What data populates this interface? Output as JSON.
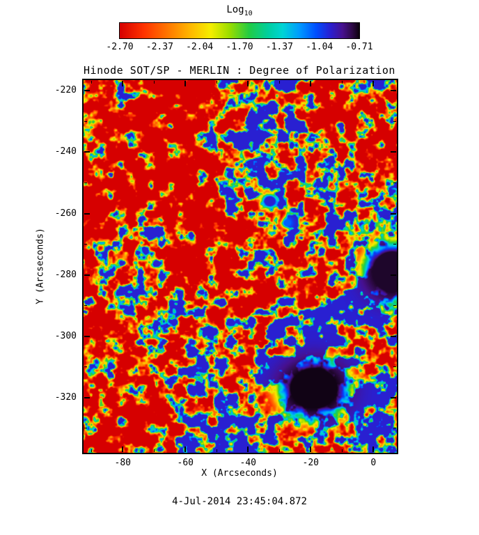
{
  "figure": {
    "timestamp": "4-Jul-2014 23:45:04.872",
    "background": "#ffffff"
  },
  "colorbar": {
    "scale_label": "Log",
    "scale_sub": "10",
    "tick_labels": [
      "-2.70",
      "-2.37",
      "-2.04",
      "-1.70",
      "-1.37",
      "-1.04",
      "-0.71"
    ]
  },
  "chart_data": {
    "type": "heatmap",
    "title": "Hinode SOT/SP - MERLIN : Degree of Polarization",
    "xlabel": "X (Arcseconds)",
    "ylabel": "Y (Arcseconds)",
    "xlim": [
      -92.5,
      7.5
    ],
    "ylim": [
      -338,
      -216.5
    ],
    "grid": false,
    "legend_position": "top-colorbar",
    "xticks": [
      {
        "v": -80,
        "label": "-80"
      },
      {
        "v": -60,
        "label": "-60"
      },
      {
        "v": -40,
        "label": "-40"
      },
      {
        "v": -20,
        "label": "-20"
      },
      {
        "v": 0,
        "label": "0"
      }
    ],
    "xminor": [
      -90,
      -70,
      -50,
      -30,
      -10
    ],
    "yticks": [
      {
        "v": -220,
        "label": "-220"
      },
      {
        "v": -240,
        "label": "-240"
      },
      {
        "v": -260,
        "label": "-260"
      },
      {
        "v": -280,
        "label": "-280"
      },
      {
        "v": -300,
        "label": "-300"
      },
      {
        "v": -320,
        "label": "-320"
      }
    ],
    "yminor": [
      -230,
      -250,
      -270,
      -290,
      -310,
      -330
    ],
    "colorbar": {
      "scale": "Log10",
      "vmin": -2.7,
      "vmax": -0.71,
      "tick_values": [
        -2.7,
        -2.37,
        -2.04,
        -1.7,
        -1.37,
        -1.04,
        -0.71
      ]
    },
    "colormap": [
      {
        "t": 0.0,
        "c": "#d60000"
      },
      {
        "t": 0.1,
        "c": "#ff3300"
      },
      {
        "t": 0.2,
        "c": "#ff7700"
      },
      {
        "t": 0.3,
        "c": "#ffbb00"
      },
      {
        "t": 0.38,
        "c": "#f5ee00"
      },
      {
        "t": 0.46,
        "c": "#99dd00"
      },
      {
        "t": 0.54,
        "c": "#22cc44"
      },
      {
        "t": 0.62,
        "c": "#00cfa0"
      },
      {
        "t": 0.68,
        "c": "#00d5d5"
      },
      {
        "t": 0.75,
        "c": "#009bff"
      },
      {
        "t": 0.82,
        "c": "#004fff"
      },
      {
        "t": 0.88,
        "c": "#2a1fd0"
      },
      {
        "t": 0.93,
        "c": "#47118f"
      },
      {
        "t": 0.97,
        "c": "#2e0a47"
      },
      {
        "t": 1.0,
        "c": "#0d020d"
      }
    ],
    "field": {
      "description": "Log10 degree-of-polarization field: quiet-sun granulation mostly red (~-2.7) with green/cyan/blue network lanes, two dark sunspots (high polarization ~-0.7) and small pores",
      "seed": 20140704,
      "vmin": -2.95,
      "vmax": -0.95,
      "gamma": 2.2,
      "stretch": 3.4,
      "octaves": [
        {
          "scale": 14,
          "weight": 0.55
        },
        {
          "scale": 3.2,
          "weight": 1.0
        },
        {
          "scale": 1.6,
          "weight": 0.55
        },
        {
          "scale": 0.8,
          "weight": 0.3
        }
      ],
      "regional_bias": {
        "x0": -92,
        "x1": 8,
        "y0": -217,
        "y1": -338,
        "cols": 10,
        "rows": 12,
        "values": [
          [
            -0.1,
            0.0,
            -0.05,
            0.0,
            0.15,
            0.3,
            0.3,
            -0.05,
            -0.1,
            0.0
          ],
          [
            -0.1,
            0.05,
            0.0,
            -0.1,
            0.1,
            0.35,
            0.3,
            0.0,
            -0.15,
            -0.05
          ],
          [
            -0.15,
            -0.05,
            0.05,
            -0.15,
            0.05,
            0.35,
            0.2,
            0.05,
            -0.15,
            -0.1
          ],
          [
            -0.1,
            0.0,
            0.0,
            -0.1,
            0.1,
            0.3,
            0.2,
            0.1,
            0.05,
            0.0
          ],
          [
            -0.15,
            -0.1,
            0.05,
            0.0,
            0.1,
            0.25,
            0.15,
            0.2,
            0.4,
            0.45
          ],
          [
            -0.2,
            -0.1,
            0.0,
            -0.1,
            0.05,
            0.15,
            0.1,
            0.25,
            0.45,
            0.5
          ],
          [
            -0.2,
            -0.15,
            -0.05,
            -0.1,
            0.0,
            0.1,
            0.15,
            0.2,
            0.4,
            0.45
          ],
          [
            -0.15,
            -0.1,
            -0.1,
            0.0,
            0.05,
            0.1,
            0.15,
            0.3,
            0.3,
            0.2
          ],
          [
            -0.2,
            -0.1,
            -0.05,
            0.0,
            0.1,
            0.2,
            0.35,
            0.4,
            0.25,
            0.1
          ],
          [
            -0.2,
            -0.15,
            -0.05,
            -0.05,
            0.1,
            0.3,
            0.4,
            0.4,
            0.2,
            0.1
          ],
          [
            -0.2,
            -0.1,
            -0.1,
            0.0,
            0.1,
            0.3,
            0.4,
            0.35,
            0.25,
            0.15
          ],
          [
            -0.15,
            -0.1,
            -0.05,
            0.0,
            0.1,
            0.2,
            0.3,
            0.3,
            0.2,
            0.2
          ]
        ]
      },
      "features": [
        {
          "name": "sunspot-lower",
          "x": -19,
          "y": -317,
          "rx": 12,
          "ry": 10.5,
          "value": -0.72,
          "power": 1.4
        },
        {
          "name": "sunspot-right-edge",
          "x": 6,
          "y": -279,
          "rx": 10,
          "ry": 10.5,
          "value": -0.74,
          "power": 1.4
        },
        {
          "name": "pore-upper",
          "x": -33,
          "y": -256,
          "rx": 2.8,
          "ry": 2.6,
          "value": -0.95,
          "power": 1.2
        },
        {
          "name": "pore-small",
          "x": -27.5,
          "y": -263,
          "rx": 1.8,
          "ry": 1.8,
          "value": -1.1,
          "power": 1.2
        }
      ]
    }
  }
}
